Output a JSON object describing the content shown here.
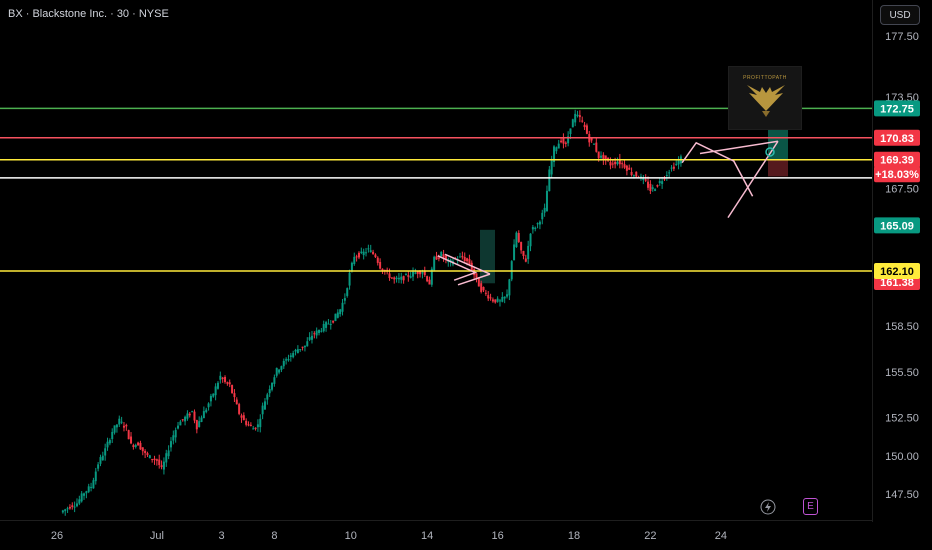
{
  "header": {
    "title": "BX · Blackstone Inc. · 30 · NYSE",
    "currency": "USD"
  },
  "logo": {
    "text": "PROFITTOPATH"
  },
  "bottom_icons": {
    "events": "E"
  },
  "chart_data": {
    "type": "candlestick",
    "symbol": "BX",
    "ylim": [
      146.3,
      180
    ],
    "y_ticks": [
      {
        "value": 147.5,
        "label": "147.50"
      },
      {
        "value": 150.0,
        "label": "150.00"
      },
      {
        "value": 152.5,
        "label": "152.50"
      },
      {
        "value": 155.5,
        "label": "155.50"
      },
      {
        "value": 158.5,
        "label": "158.50"
      },
      {
        "value": 167.5,
        "label": "167.50"
      },
      {
        "value": 173.5,
        "label": "173.50"
      },
      {
        "value": 177.5,
        "label": "177.50"
      }
    ],
    "x_ticks": [
      {
        "label": "26",
        "pos": 0.0
      },
      {
        "label": "Jul",
        "pos": 4.25
      },
      {
        "label": "3",
        "pos": 7.0
      },
      {
        "label": "8",
        "pos": 9.25
      },
      {
        "label": "10",
        "pos": 12.5
      },
      {
        "label": "14",
        "pos": 15.75
      },
      {
        "label": "16",
        "pos": 18.75
      },
      {
        "label": "18",
        "pos": 22.0
      },
      {
        "label": "22",
        "pos": 25.25
      },
      {
        "label": "24",
        "pos": 28.25
      }
    ],
    "levels": [
      {
        "value": 172.75,
        "label": "172.75",
        "line_color": "#4caf50",
        "tag_color": "#089981"
      },
      {
        "value": 170.83,
        "label": "170.83",
        "line_color": "#f7525f",
        "tag_color": "#f23645"
      },
      {
        "value": 169.39,
        "label": "169.39",
        "line_color": "#ffeb3b",
        "tag_color": "#f23645",
        "extra": "+18.03%"
      },
      {
        "value": 168.2,
        "label": "",
        "line_color": "#ffffff",
        "tag_color": null
      },
      {
        "value": 162.1,
        "label": "162.10",
        "line_color": "#ffeb3b",
        "tag_color": "#ffeb3b",
        "text_color": "#000000",
        "under": "161.38"
      }
    ],
    "price_tags": [
      {
        "value": 165.09,
        "label": "165.09",
        "color": "#089981"
      }
    ],
    "colors": {
      "up": "#089981",
      "down": "#f23645",
      "bg": "#000000"
    },
    "path": [
      [
        0.2,
        146.3
      ],
      [
        0.6,
        146.7
      ],
      [
        0.9,
        146.9
      ],
      [
        1.2,
        147.6
      ],
      [
        1.5,
        148.0
      ],
      [
        1.8,
        149.5
      ],
      [
        2.1,
        150.4
      ],
      [
        2.4,
        151.6
      ],
      [
        2.7,
        152.3
      ],
      [
        3.0,
        151.8
      ],
      [
        3.2,
        150.7
      ],
      [
        3.5,
        150.8
      ],
      [
        3.8,
        150.1
      ],
      [
        4.0,
        149.9
      ],
      [
        4.3,
        149.7
      ],
      [
        4.5,
        149.1
      ],
      [
        4.7,
        150.0
      ],
      [
        4.9,
        151.0
      ],
      [
        5.2,
        152.1
      ],
      [
        5.5,
        152.5
      ],
      [
        5.8,
        152.9
      ],
      [
        6.0,
        151.9
      ],
      [
        6.2,
        152.6
      ],
      [
        6.4,
        153.1
      ],
      [
        6.7,
        154.1
      ],
      [
        7.0,
        155.2
      ],
      [
        7.2,
        154.8
      ],
      [
        7.4,
        154.6
      ],
      [
        7.6,
        153.7
      ],
      [
        7.8,
        152.8
      ],
      [
        8.0,
        152.3
      ],
      [
        8.2,
        152.0
      ],
      [
        8.4,
        151.8
      ],
      [
        8.6,
        152.0
      ],
      [
        8.8,
        153.2
      ],
      [
        9.1,
        154.5
      ],
      [
        9.4,
        155.6
      ],
      [
        9.7,
        156.1
      ],
      [
        10.0,
        156.6
      ],
      [
        10.3,
        157.0
      ],
      [
        10.6,
        157.2
      ],
      [
        10.9,
        157.9
      ],
      [
        11.2,
        158.2
      ],
      [
        11.5,
        158.6
      ],
      [
        11.8,
        158.9
      ],
      [
        12.1,
        159.6
      ],
      [
        12.3,
        160.4
      ],
      [
        12.5,
        161.9
      ],
      [
        12.7,
        163.1
      ],
      [
        13.0,
        163.2
      ],
      [
        13.3,
        163.5
      ],
      [
        13.6,
        163.1
      ],
      [
        13.8,
        162.4
      ],
      [
        14.1,
        161.9
      ],
      [
        14.4,
        161.5
      ],
      [
        14.7,
        161.6
      ],
      [
        15.0,
        161.8
      ],
      [
        15.3,
        162.0
      ],
      [
        15.6,
        162.1
      ],
      [
        15.9,
        161.3
      ],
      [
        16.1,
        162.9
      ],
      [
        16.4,
        163.2
      ],
      [
        16.7,
        162.6
      ],
      [
        17.0,
        162.9
      ],
      [
        17.3,
        163.0
      ],
      [
        17.6,
        162.6
      ],
      [
        17.9,
        161.5
      ],
      [
        18.1,
        160.9
      ],
      [
        18.3,
        160.6
      ],
      [
        18.6,
        160.2
      ],
      [
        18.9,
        160.1
      ],
      [
        19.2,
        160.5
      ],
      [
        19.4,
        162.8
      ],
      [
        19.6,
        164.6
      ],
      [
        19.8,
        163.3
      ],
      [
        20.0,
        162.8
      ],
      [
        20.2,
        164.7
      ],
      [
        20.5,
        165.2
      ],
      [
        20.8,
        166.1
      ],
      [
        21.0,
        168.6
      ],
      [
        21.2,
        170.1
      ],
      [
        21.5,
        170.7
      ],
      [
        21.7,
        170.3
      ],
      [
        21.9,
        171.6
      ],
      [
        22.1,
        172.3
      ],
      [
        22.3,
        172.1
      ],
      [
        22.5,
        171.5
      ],
      [
        22.7,
        170.7
      ],
      [
        22.9,
        170.4
      ],
      [
        23.1,
        169.6
      ],
      [
        23.3,
        169.5
      ],
      [
        23.6,
        169.1
      ],
      [
        23.9,
        169.3
      ],
      [
        24.2,
        169.0
      ],
      [
        24.5,
        168.5
      ],
      [
        24.8,
        168.3
      ],
      [
        25.1,
        167.9
      ],
      [
        25.3,
        167.4
      ],
      [
        25.5,
        167.6
      ],
      [
        25.8,
        168.1
      ],
      [
        26.1,
        168.7
      ],
      [
        26.4,
        169.1
      ],
      [
        26.6,
        169.5
      ]
    ]
  }
}
